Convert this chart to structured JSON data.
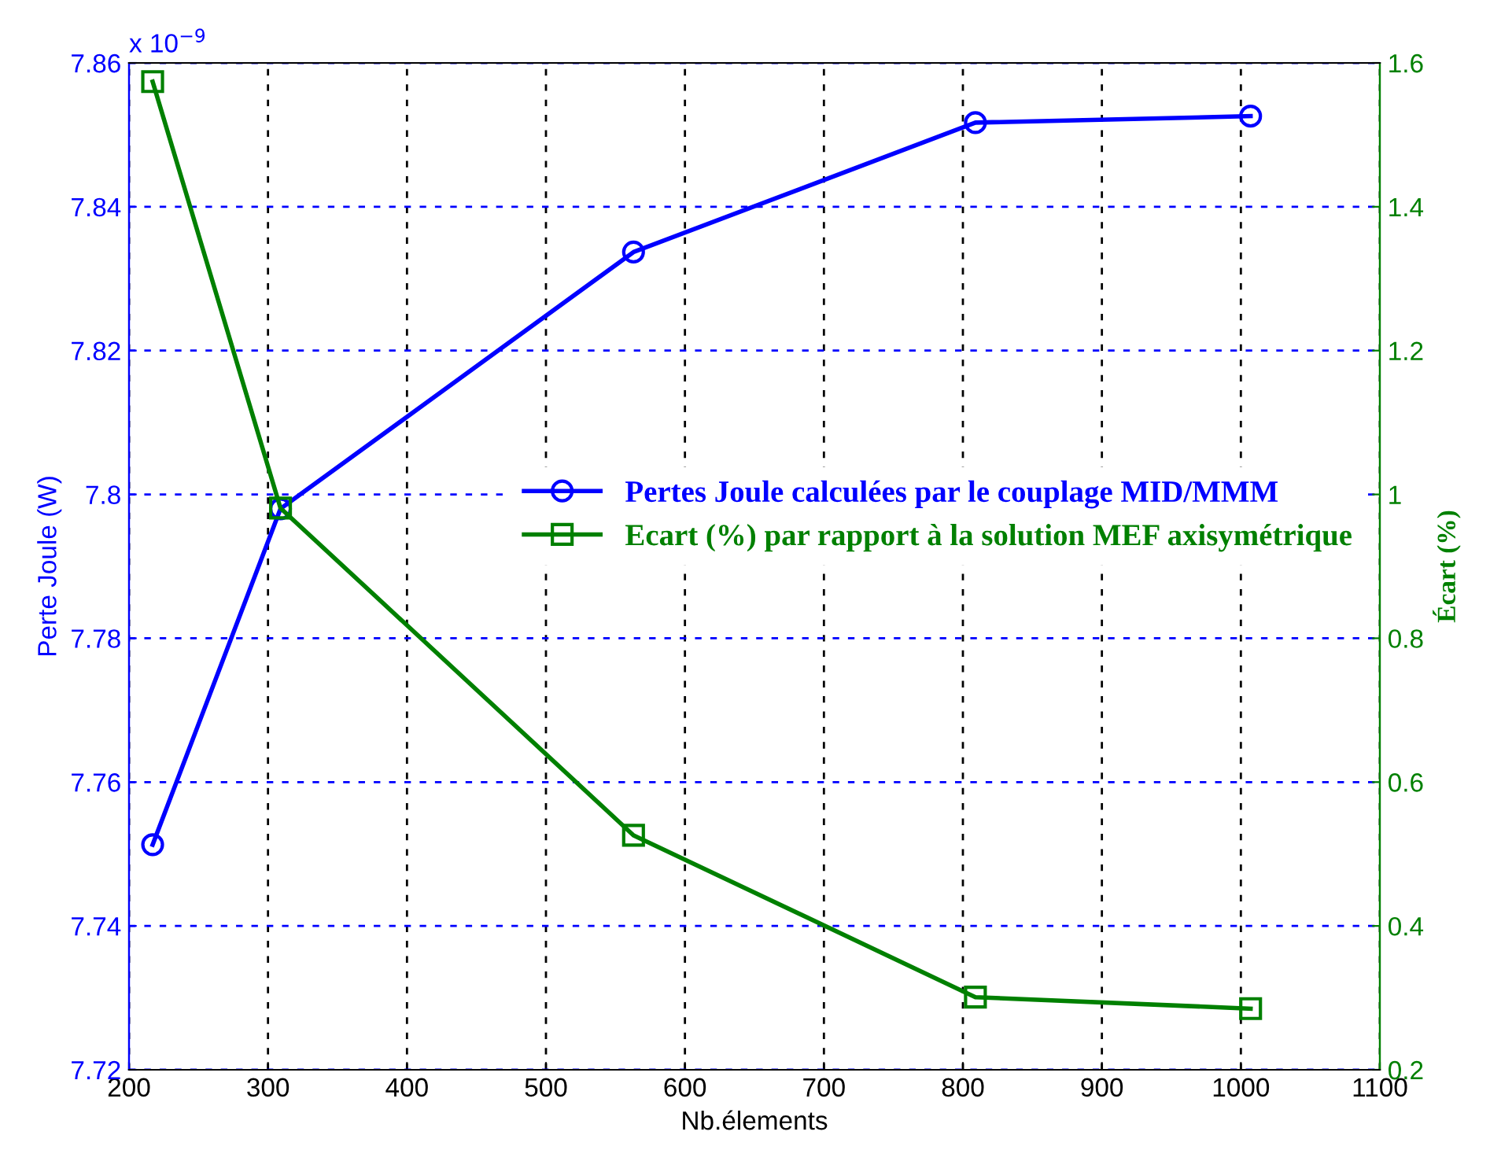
{
  "chart_data": {
    "type": "line",
    "xlabel": "Nb.élements",
    "ylabel": "Perte Joule (W)",
    "y2label": "Écart (%)",
    "annotations": [
      "x 10$^{−9}$"
    ],
    "series": [
      {
        "name": "Pertes Joule calculées par le couplage MID/MMM",
        "color": "#0000ff",
        "x": [
          217,
          309,
          563,
          809,
          1007
        ],
        "values": [
          7.7513,
          7.798,
          7.8337,
          7.8517,
          7.8526
        ],
        "marker": "circle"
      },
      {
        "name": "Ecart (%) par rapport à la solution MEF axisymétrique",
        "color": "#008000",
        "axis": "y2",
        "x": [
          217,
          309,
          563,
          809,
          1007
        ],
        "values": [
          1.574,
          0.981,
          0.526,
          0.301,
          0.285
        ],
        "marker": "square"
      }
    ],
    "xlim": [
      200,
      1100
    ],
    "xticks": [
      200,
      300,
      400,
      500,
      600,
      700,
      800,
      900,
      1000,
      1100
    ],
    "ylim": [
      7.72,
      7.86
    ],
    "yticks": [
      7.72,
      7.74,
      7.76,
      7.78,
      7.8,
      7.82,
      7.84,
      7.86
    ],
    "y2lim": [
      0.2,
      1.6
    ],
    "y2ticks": [
      0.2,
      0.4,
      0.6,
      0.8,
      1,
      1.2,
      1.4,
      1.6
    ],
    "grid": true,
    "legend": "center right",
    "line_style": "solid"
  }
}
